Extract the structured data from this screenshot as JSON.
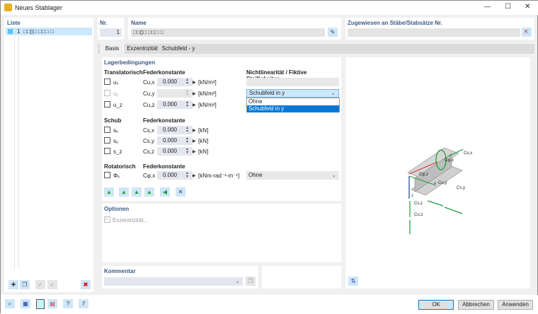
{
  "window": {
    "title": "Neues Stablager",
    "minimize": "—",
    "maximize": "☐",
    "close": "✕"
  },
  "list": {
    "header": "Liste",
    "items": [
      {
        "nr": "1",
        "name": "□□▯□ □□□ □"
      }
    ]
  },
  "nr": {
    "label": "Nr.",
    "value": "1"
  },
  "name": {
    "label": "Name",
    "value": "□□▯□ □□□ □"
  },
  "assigned": {
    "label": "Zugewiesen an Stäbe/Stabsätze Nr.",
    "value": ""
  },
  "tabs": [
    {
      "label": "Basis"
    },
    {
      "label": "Exzentrizität"
    },
    {
      "label": "Schubfeld - y"
    }
  ],
  "support": {
    "title": "Lagerbedingungen",
    "translational": {
      "header": "Translatorisch",
      "spring_header": "Federkonstante",
      "rows": [
        {
          "dof": "uₓ",
          "const": "Cu,x",
          "value": "0.000",
          "unit": "[kN/m²]",
          "checked": false,
          "disabled": false
        },
        {
          "dof": "uᵧ",
          "const": "Cu,y",
          "value": "",
          "unit": "[kN/m²]",
          "checked": false,
          "disabled": true
        },
        {
          "dof": "u_z",
          "const": "Cu,z",
          "value": "0.000",
          "unit": "[kN/m²]",
          "checked": false,
          "disabled": false
        }
      ]
    },
    "nonlinear": {
      "header": "Nichtlinearität / Fiktive Steifigkeiten",
      "selected": "Schubfeld in y",
      "options": [
        "Ohne",
        "Schubfeld in y"
      ]
    },
    "shear": {
      "header": "Schub",
      "spring_header": "Federkonstante",
      "rows": [
        {
          "dof": "sₓ",
          "const": "Cs,x",
          "value": "0.000",
          "unit": "[kN]"
        },
        {
          "dof": "sᵧ",
          "const": "Cs,y",
          "value": "0.000",
          "unit": "[kN]"
        },
        {
          "dof": "s_z",
          "const": "Cs,z",
          "value": "0.000",
          "unit": "[kN]"
        }
      ]
    },
    "rotational": {
      "header": "Rotatorisch",
      "spring_header": "Federkonstante",
      "rows": [
        {
          "dof": "Φₓ",
          "const": "Cφ,x",
          "value": "0.000",
          "unit": "[kNm-rad⁻¹-m⁻¹]",
          "nonlinear": "Ohne"
        }
      ]
    }
  },
  "options": {
    "title": "Optionen",
    "eccentricity": "Exzentrizität...",
    "eccentricity_checked": true
  },
  "comment": {
    "title": "Kommentar",
    "value": ""
  },
  "graphic": {
    "labels": [
      "Cu,x",
      "Cφ,x",
      "Cφ,z",
      "Cu,y",
      "Cs,y",
      "Cs,z",
      "Cu,z",
      "y",
      "z"
    ]
  },
  "buttons": {
    "ok": "OK",
    "cancel": "Abbrechen",
    "apply": "Anwenden"
  },
  "colors": {
    "accent": "#0078d7",
    "panel_header": "#3b5a8a",
    "spring": "#1a9d3a",
    "selection": "#cce8ff"
  }
}
